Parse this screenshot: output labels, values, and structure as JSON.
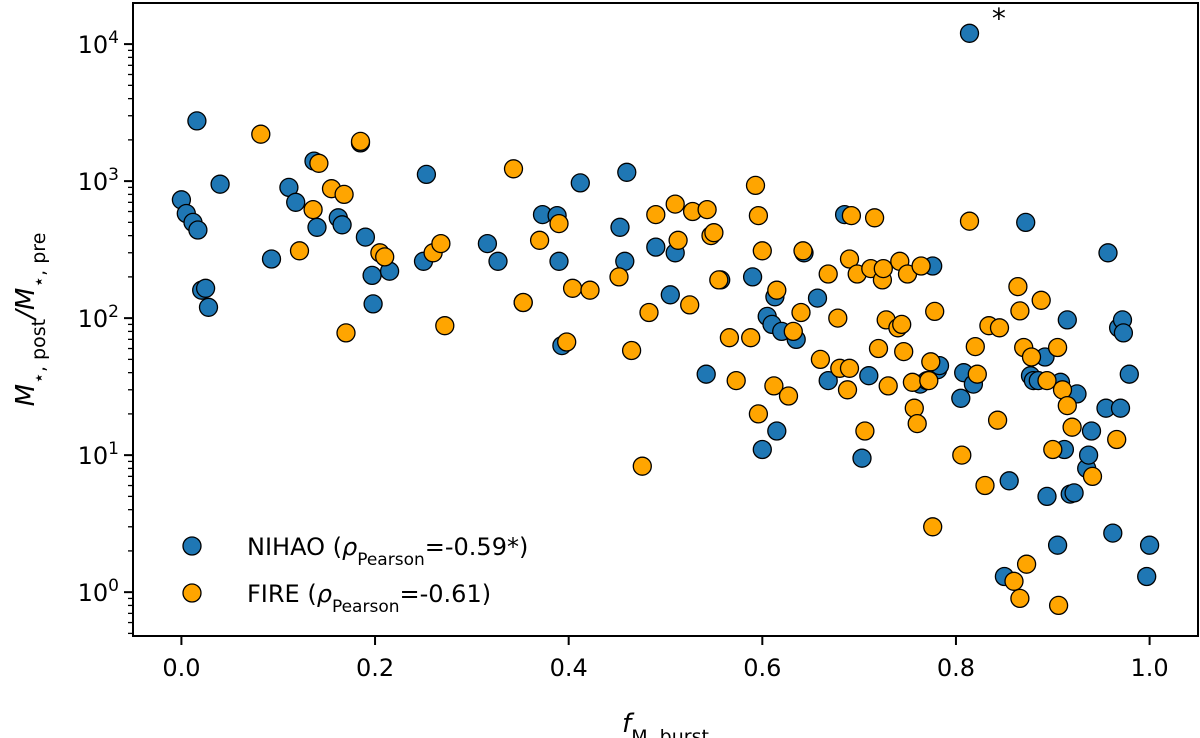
{
  "chart_data": {
    "type": "scatter",
    "title": "",
    "xlabel": {
      "main": "f",
      "sub": "M, burst"
    },
    "ylabel": {
      "main": "M",
      "sub1": "⋆, post",
      "mid": "/M",
      "sub2": "⋆, pre"
    },
    "xlim": [
      -0.05,
      1.05
    ],
    "ylim_log10": [
      -0.32,
      4.3
    ],
    "yscale": "log",
    "grid": false,
    "legend_position": "lower-left",
    "x_ticks": [
      {
        "v": 0.0,
        "label": "0.0"
      },
      {
        "v": 0.2,
        "label": "0.2"
      },
      {
        "v": 0.4,
        "label": "0.4"
      },
      {
        "v": 0.6,
        "label": "0.6"
      },
      {
        "v": 0.8,
        "label": "0.8"
      },
      {
        "v": 1.0,
        "label": "1.0"
      }
    ],
    "y_ticks": [
      {
        "exp": 0,
        "base": "10",
        "sup": "0"
      },
      {
        "exp": 1,
        "base": "10",
        "sup": "1"
      },
      {
        "exp": 2,
        "base": "10",
        "sup": "2"
      },
      {
        "exp": 3,
        "base": "10",
        "sup": "3"
      },
      {
        "exp": 4,
        "base": "10",
        "sup": "4"
      }
    ],
    "annotation": {
      "text": "*",
      "x": 0.835,
      "y": 16000
    },
    "series": [
      {
        "name": "NIHAO",
        "legend_label": {
          "prefix": "NIHAO (",
          "rho": "ρ",
          "sub": "Pearson",
          "suffix": "=-0.59*)"
        },
        "color": "#1f77b4",
        "points": [
          [
            0.0,
            730
          ],
          [
            0.005,
            580
          ],
          [
            0.012,
            500
          ],
          [
            0.017,
            440
          ],
          [
            0.016,
            2750
          ],
          [
            0.021,
            160
          ],
          [
            0.025,
            165
          ],
          [
            0.028,
            120
          ],
          [
            0.04,
            950
          ],
          [
            0.093,
            270
          ],
          [
            0.111,
            900
          ],
          [
            0.118,
            700
          ],
          [
            0.137,
            1400
          ],
          [
            0.14,
            460
          ],
          [
            0.162,
            540
          ],
          [
            0.166,
            480
          ],
          [
            0.185,
            1900
          ],
          [
            0.19,
            390
          ],
          [
            0.197,
            205
          ],
          [
            0.198,
            127
          ],
          [
            0.215,
            220
          ],
          [
            0.25,
            260
          ],
          [
            0.253,
            1120
          ],
          [
            0.316,
            350
          ],
          [
            0.327,
            260
          ],
          [
            0.353,
            130
          ],
          [
            0.373,
            570
          ],
          [
            0.388,
            560
          ],
          [
            0.39,
            260
          ],
          [
            0.393,
            63
          ],
          [
            0.412,
            970
          ],
          [
            0.453,
            460
          ],
          [
            0.458,
            260
          ],
          [
            0.46,
            1160
          ],
          [
            0.49,
            330
          ],
          [
            0.505,
            148
          ],
          [
            0.51,
            300
          ],
          [
            0.542,
            39
          ],
          [
            0.557,
            190
          ],
          [
            0.59,
            200
          ],
          [
            0.6,
            11
          ],
          [
            0.605,
            103
          ],
          [
            0.61,
            90
          ],
          [
            0.613,
            143
          ],
          [
            0.615,
            15
          ],
          [
            0.62,
            80
          ],
          [
            0.635,
            70
          ],
          [
            0.643,
            300
          ],
          [
            0.657,
            140
          ],
          [
            0.668,
            35
          ],
          [
            0.685,
            570
          ],
          [
            0.703,
            9.5
          ],
          [
            0.71,
            38
          ],
          [
            0.763,
            33
          ],
          [
            0.77,
            35
          ],
          [
            0.776,
            240
          ],
          [
            0.781,
            42
          ],
          [
            0.783,
            45
          ],
          [
            0.805,
            26
          ],
          [
            0.808,
            40
          ],
          [
            0.814,
            12000
          ],
          [
            0.818,
            33
          ],
          [
            0.855,
            6.5
          ],
          [
            0.872,
            500
          ],
          [
            0.877,
            38
          ],
          [
            0.88,
            35
          ],
          [
            0.885,
            35
          ],
          [
            0.892,
            52
          ],
          [
            0.894,
            5
          ],
          [
            0.905,
            2.2
          ],
          [
            0.908,
            34
          ],
          [
            0.912,
            11
          ],
          [
            0.915,
            97
          ],
          [
            0.918,
            5.2
          ],
          [
            0.922,
            5.3
          ],
          [
            0.925,
            28
          ],
          [
            0.935,
            8
          ],
          [
            0.937,
            10
          ],
          [
            0.94,
            15
          ],
          [
            0.955,
            22
          ],
          [
            0.957,
            300
          ],
          [
            0.962,
            2.7
          ],
          [
            0.968,
            85
          ],
          [
            0.97,
            22
          ],
          [
            0.972,
            97
          ],
          [
            0.973,
            78
          ],
          [
            0.979,
            39
          ],
          [
            0.997,
            1.3
          ],
          [
            1.0,
            2.2
          ],
          [
            0.85,
            1.3
          ]
        ]
      },
      {
        "name": "FIRE",
        "legend_label": {
          "prefix": "FIRE (",
          "rho": "ρ",
          "sub": "Pearson",
          "suffix": "=-0.61)"
        },
        "color": "#ffa500",
        "points": [
          [
            0.082,
            2200
          ],
          [
            0.122,
            310
          ],
          [
            0.136,
            620
          ],
          [
            0.142,
            1350
          ],
          [
            0.155,
            880
          ],
          [
            0.168,
            800
          ],
          [
            0.17,
            78
          ],
          [
            0.185,
            1950
          ],
          [
            0.205,
            300
          ],
          [
            0.21,
            280
          ],
          [
            0.26,
            300
          ],
          [
            0.268,
            350
          ],
          [
            0.272,
            88
          ],
          [
            0.343,
            1230
          ],
          [
            0.353,
            130
          ],
          [
            0.37,
            370
          ],
          [
            0.39,
            490
          ],
          [
            0.398,
            67
          ],
          [
            0.404,
            165
          ],
          [
            0.422,
            160
          ],
          [
            0.452,
            200
          ],
          [
            0.465,
            58
          ],
          [
            0.476,
            8.3
          ],
          [
            0.49,
            570
          ],
          [
            0.483,
            110
          ],
          [
            0.51,
            680
          ],
          [
            0.513,
            370
          ],
          [
            0.525,
            125
          ],
          [
            0.528,
            600
          ],
          [
            0.543,
            620
          ],
          [
            0.547,
            400
          ],
          [
            0.55,
            420
          ],
          [
            0.555,
            190
          ],
          [
            0.566,
            72
          ],
          [
            0.573,
            35
          ],
          [
            0.588,
            72
          ],
          [
            0.593,
            930
          ],
          [
            0.596,
            560
          ],
          [
            0.596,
            20
          ],
          [
            0.6,
            310
          ],
          [
            0.612,
            32
          ],
          [
            0.615,
            160
          ],
          [
            0.627,
            27
          ],
          [
            0.632,
            80
          ],
          [
            0.64,
            110
          ],
          [
            0.642,
            310
          ],
          [
            0.66,
            50
          ],
          [
            0.668,
            210
          ],
          [
            0.678,
            100
          ],
          [
            0.68,
            43
          ],
          [
            0.688,
            30
          ],
          [
            0.69,
            43
          ],
          [
            0.692,
            560
          ],
          [
            0.69,
            270
          ],
          [
            0.698,
            210
          ],
          [
            0.706,
            15
          ],
          [
            0.712,
            230
          ],
          [
            0.716,
            540
          ],
          [
            0.72,
            60
          ],
          [
            0.724,
            190
          ],
          [
            0.725,
            230
          ],
          [
            0.728,
            97
          ],
          [
            0.73,
            32
          ],
          [
            0.74,
            85
          ],
          [
            0.742,
            260
          ],
          [
            0.744,
            90
          ],
          [
            0.746,
            57
          ],
          [
            0.75,
            210
          ],
          [
            0.755,
            34
          ],
          [
            0.757,
            22
          ],
          [
            0.76,
            17
          ],
          [
            0.764,
            240
          ],
          [
            0.772,
            35
          ],
          [
            0.774,
            48
          ],
          [
            0.776,
            3
          ],
          [
            0.778,
            112
          ],
          [
            0.806,
            10
          ],
          [
            0.814,
            510
          ],
          [
            0.82,
            62
          ],
          [
            0.822,
            39
          ],
          [
            0.83,
            6
          ],
          [
            0.834,
            88
          ],
          [
            0.843,
            18
          ],
          [
            0.845,
            85
          ],
          [
            0.86,
            1.2
          ],
          [
            0.864,
            170
          ],
          [
            0.866,
            113
          ],
          [
            0.866,
            0.9
          ],
          [
            0.87,
            61
          ],
          [
            0.873,
            1.6
          ],
          [
            0.878,
            52
          ],
          [
            0.888,
            135
          ],
          [
            0.894,
            35
          ],
          [
            0.9,
            11
          ],
          [
            0.905,
            61
          ],
          [
            0.906,
            0.8
          ],
          [
            0.91,
            30
          ],
          [
            0.915,
            23
          ],
          [
            0.92,
            16
          ],
          [
            0.941,
            7
          ],
          [
            0.966,
            13
          ]
        ]
      }
    ]
  }
}
